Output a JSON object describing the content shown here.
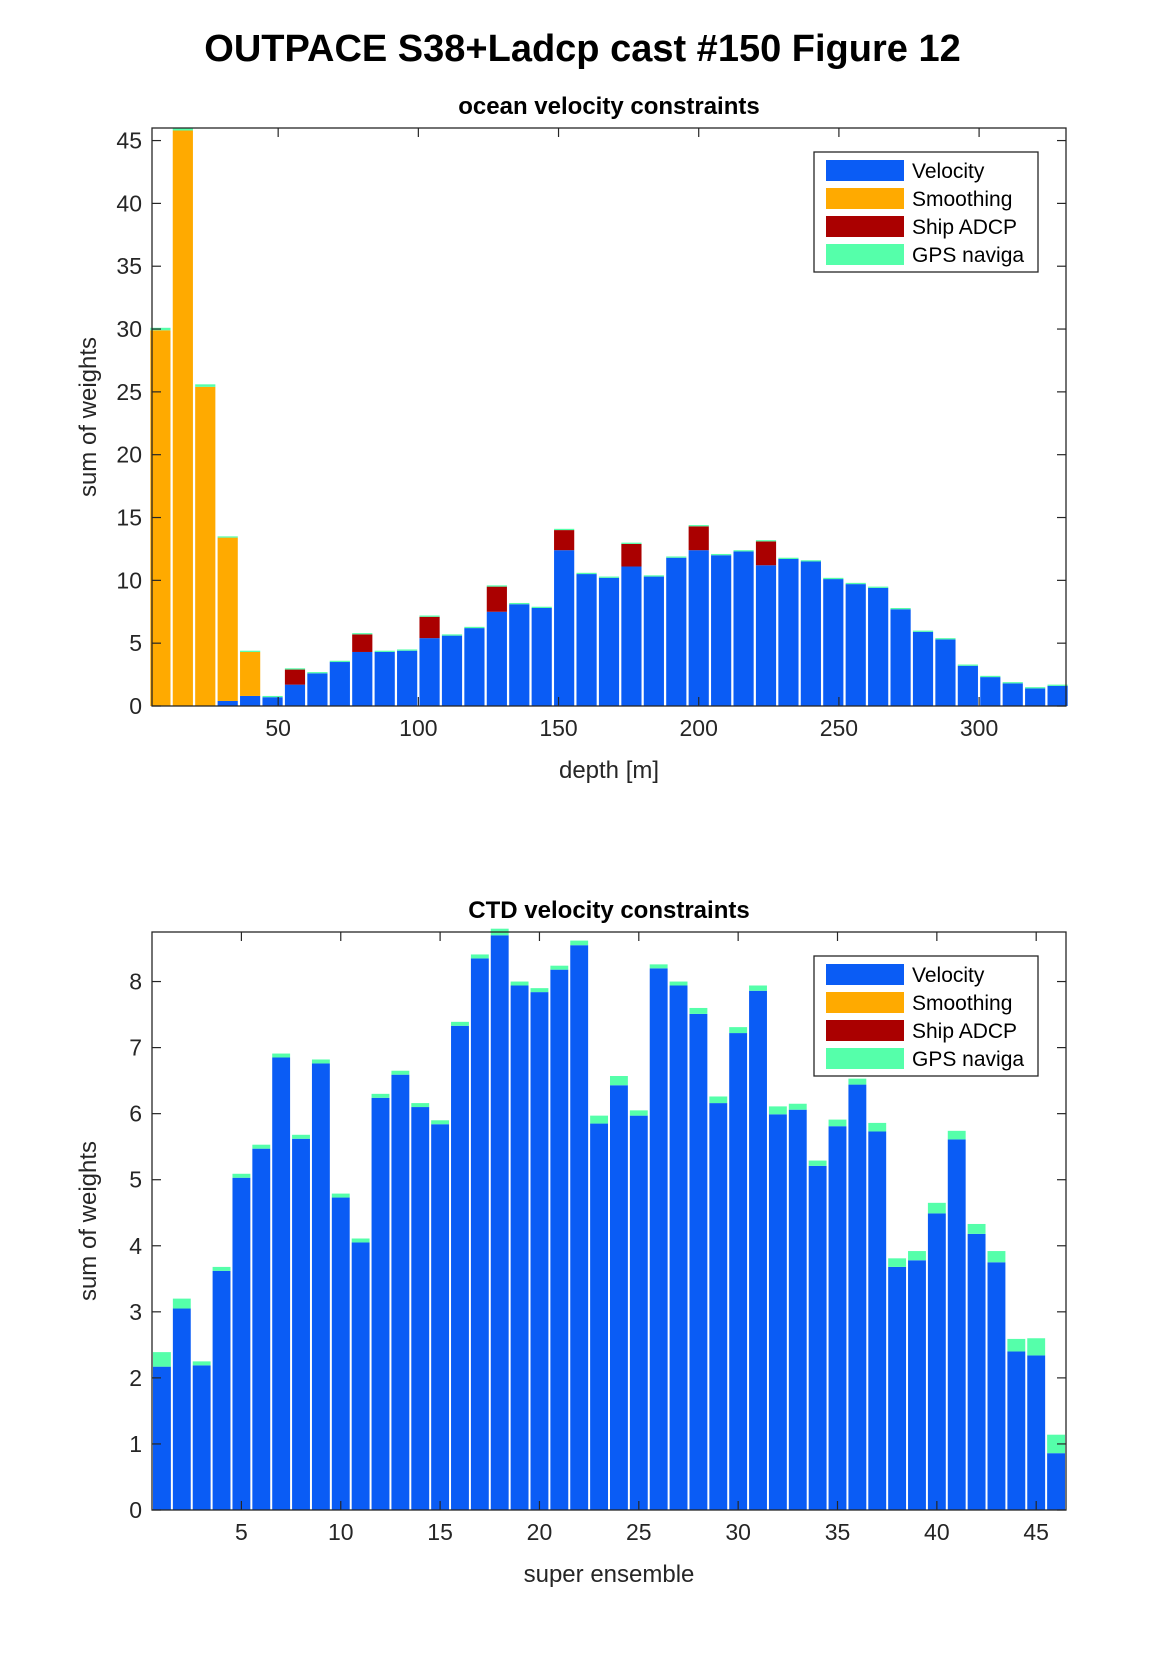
{
  "figure": {
    "title": "OUTPACE S38+Ladcp cast #150  Figure 12"
  },
  "colors": {
    "Velocity": "#0a5cf5",
    "Smoothing": "#ffaa00",
    "Ship ADCP": "#aa0000",
    "GPS naviga": "#55ffaa"
  },
  "chart_data": [
    {
      "type": "bar",
      "stacked": true,
      "title": "ocean velocity constraints",
      "xlabel": "depth [m]",
      "ylabel": "sum of weights",
      "xlim": [
        5,
        331
      ],
      "ylim": [
        0,
        46
      ],
      "xticks": [
        50,
        100,
        150,
        200,
        250,
        300
      ],
      "yticks": [
        0,
        5,
        10,
        15,
        20,
        25,
        30,
        35,
        40,
        45
      ],
      "legend_position": "top-right",
      "legend": [
        "Velocity",
        "Smoothing",
        "Ship ADCP",
        "GPS naviga"
      ],
      "x": [
        8,
        16,
        24,
        32,
        40,
        48,
        56,
        64,
        72,
        80,
        88,
        96,
        104,
        112,
        120,
        128,
        136,
        144,
        152,
        160,
        168,
        176,
        184,
        192,
        200,
        208,
        216,
        224,
        232,
        240,
        248,
        256,
        264,
        272,
        280,
        288,
        296,
        304,
        312,
        320,
        328
      ],
      "series": [
        {
          "name": "Velocity",
          "values": [
            0,
            0,
            0,
            0.4,
            0.8,
            0.7,
            1.7,
            2.6,
            3.5,
            4.3,
            4.3,
            4.4,
            5.4,
            5.6,
            6.2,
            7.5,
            8.1,
            7.8,
            12.4,
            10.5,
            10.2,
            11.1,
            10.3,
            11.8,
            12.4,
            12.0,
            12.3,
            11.2,
            11.7,
            11.5,
            10.1,
            9.7,
            9.4,
            7.7,
            5.9,
            5.3,
            3.2,
            2.3,
            1.8,
            1.4,
            1.6
          ]
        },
        {
          "name": "Smoothing",
          "values": [
            29.9,
            45.8,
            25.4,
            13.0,
            3.5,
            0,
            0,
            0,
            0,
            0,
            0,
            0,
            0,
            0,
            0,
            0,
            0,
            0,
            0,
            0,
            0,
            0,
            0,
            0,
            0,
            0,
            0,
            0,
            0,
            0,
            0,
            0,
            0,
            0,
            0,
            0,
            0,
            0,
            0,
            0,
            0
          ]
        },
        {
          "name": "Ship ADCP",
          "values": [
            0,
            0,
            0,
            0,
            0,
            0,
            1.2,
            0,
            0,
            1.4,
            0,
            0,
            1.7,
            0,
            0,
            2.0,
            0,
            0,
            1.6,
            0,
            0,
            1.8,
            0,
            0,
            1.9,
            0,
            0,
            1.9,
            0,
            0,
            0,
            0,
            0,
            0,
            0,
            0,
            0,
            0,
            0,
            0,
            0
          ]
        },
        {
          "name": "GPS naviga",
          "values": [
            0.2,
            0.2,
            0.2,
            0.1,
            0.1,
            0.1,
            0.1,
            0.1,
            0.1,
            0.1,
            0.1,
            0.1,
            0.1,
            0.1,
            0.1,
            0.1,
            0.1,
            0.1,
            0.1,
            0.1,
            0.1,
            0.1,
            0.1,
            0.1,
            0.1,
            0.1,
            0.1,
            0.1,
            0.1,
            0.1,
            0.1,
            0.1,
            0.1,
            0.1,
            0.1,
            0.1,
            0.1,
            0.1,
            0.1,
            0.1,
            0.1
          ]
        }
      ]
    },
    {
      "type": "bar",
      "stacked": true,
      "title": "CTD velocity constraints",
      "xlabel": "super ensemble",
      "ylabel": "sum of weights",
      "xlim": [
        0.5,
        46.5
      ],
      "ylim": [
        0,
        8.75
      ],
      "xticks": [
        5,
        10,
        15,
        20,
        25,
        30,
        35,
        40,
        45
      ],
      "yticks": [
        0,
        1,
        2,
        3,
        4,
        5,
        6,
        7,
        8
      ],
      "legend_position": "top-right",
      "legend": [
        "Velocity",
        "Smoothing",
        "Ship ADCP",
        "GPS naviga"
      ],
      "x": [
        1,
        2,
        3,
        4,
        5,
        6,
        7,
        8,
        9,
        10,
        11,
        12,
        13,
        14,
        15,
        16,
        17,
        18,
        19,
        20,
        21,
        22,
        23,
        24,
        25,
        26,
        27,
        28,
        29,
        30,
        31,
        32,
        33,
        34,
        35,
        36,
        37,
        38,
        39,
        40,
        41,
        42,
        43,
        44,
        45,
        46
      ],
      "series": [
        {
          "name": "Velocity",
          "values": [
            2.17,
            3.05,
            2.19,
            3.62,
            5.03,
            5.47,
            6.85,
            5.62,
            6.76,
            4.73,
            4.05,
            6.24,
            6.59,
            6.1,
            5.84,
            7.33,
            8.35,
            8.7,
            7.94,
            7.84,
            8.18,
            8.55,
            5.85,
            6.43,
            5.97,
            8.2,
            7.94,
            7.51,
            6.16,
            7.22,
            7.86,
            5.99,
            6.06,
            5.21,
            5.81,
            6.44,
            5.73,
            3.68,
            3.78,
            4.49,
            5.61,
            4.18,
            3.75,
            2.4,
            2.34,
            0.86
          ]
        },
        {
          "name": "Smoothing",
          "values": [
            0,
            0,
            0,
            0,
            0,
            0,
            0,
            0,
            0,
            0,
            0,
            0,
            0,
            0,
            0,
            0,
            0,
            0,
            0,
            0,
            0,
            0,
            0,
            0,
            0,
            0,
            0,
            0,
            0,
            0,
            0,
            0,
            0,
            0,
            0,
            0,
            0,
            0,
            0,
            0,
            0,
            0,
            0,
            0,
            0,
            0
          ]
        },
        {
          "name": "Ship ADCP",
          "values": [
            0,
            0,
            0,
            0,
            0,
            0,
            0,
            0,
            0,
            0,
            0,
            0,
            0,
            0,
            0,
            0,
            0,
            0,
            0,
            0,
            0,
            0,
            0,
            0,
            0,
            0,
            0,
            0,
            0,
            0,
            0,
            0,
            0,
            0,
            0,
            0,
            0,
            0,
            0,
            0,
            0,
            0,
            0,
            0,
            0,
            0
          ]
        },
        {
          "name": "GPS naviga",
          "values": [
            0.22,
            0.15,
            0.06,
            0.06,
            0.06,
            0.06,
            0.06,
            0.06,
            0.06,
            0.06,
            0.06,
            0.06,
            0.06,
            0.06,
            0.06,
            0.06,
            0.06,
            0.1,
            0.06,
            0.06,
            0.06,
            0.07,
            0.12,
            0.14,
            0.08,
            0.06,
            0.06,
            0.09,
            0.1,
            0.09,
            0.08,
            0.12,
            0.09,
            0.08,
            0.1,
            0.09,
            0.13,
            0.13,
            0.14,
            0.16,
            0.13,
            0.15,
            0.17,
            0.19,
            0.26,
            0.28
          ]
        }
      ]
    }
  ]
}
